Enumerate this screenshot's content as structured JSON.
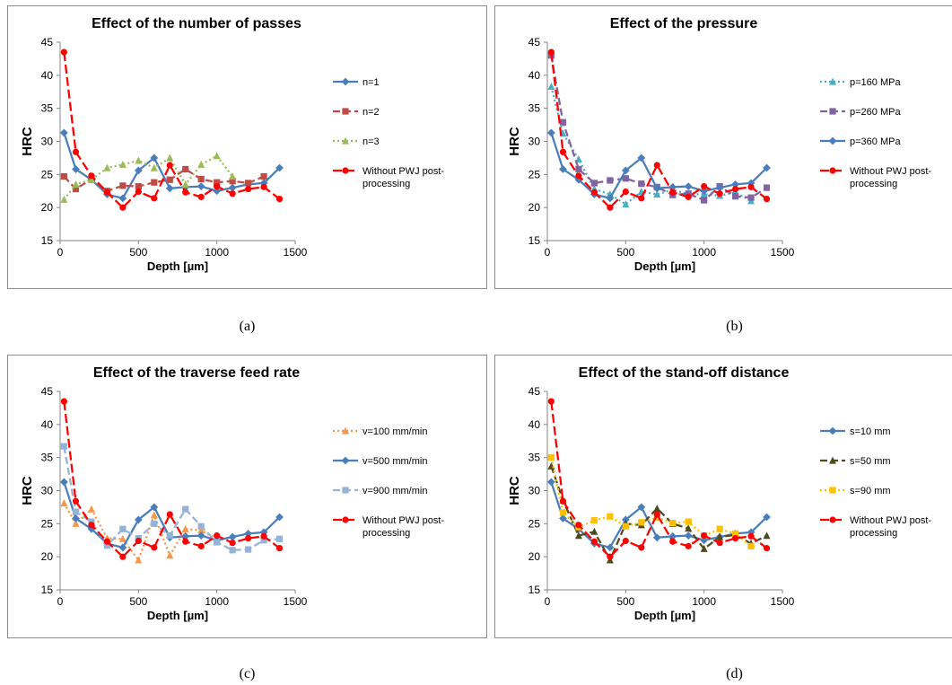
{
  "colors": {
    "blue": "#4a7ebb",
    "red_brick": "#be4b48",
    "green": "#9bbb59",
    "red": "#ff0000",
    "cyan": "#4bacc6",
    "purple": "#8064a2",
    "orange": "#f79646",
    "light_blue": "#95b3d7",
    "olive": "#4f4a1e",
    "yellow": "#ffc000"
  },
  "captions": [
    "(a)",
    "(b)",
    "(c)",
    "(d)"
  ],
  "chart_data": [
    {
      "type": "line",
      "title": "Effect of the number of passes",
      "xlabel": "Depth [µm]",
      "ylabel": "HRC",
      "xlim": [
        0,
        1500
      ],
      "ylim": [
        15,
        45
      ],
      "xticks": [
        0,
        500,
        1000,
        1500
      ],
      "yticks": [
        15,
        20,
        25,
        30,
        35,
        40,
        45
      ],
      "grid": false,
      "legend": "right",
      "series": [
        {
          "name": "n=1",
          "color": "#4a7ebb",
          "marker": "diamond",
          "dash": "solid",
          "x": [
            25,
            100,
            200,
            300,
            400,
            500,
            600,
            700,
            800,
            900,
            1000,
            1100,
            1200,
            1300,
            1400
          ],
          "y": [
            31.3,
            25.8,
            24.2,
            22.0,
            21.4,
            25.6,
            27.5,
            22.9,
            23.1,
            23.2,
            22.5,
            23.0,
            23.5,
            23.7,
            26.0
          ]
        },
        {
          "name": "n=2",
          "color": "#be4b48",
          "marker": "square",
          "dash": "dash",
          "x": [
            25,
            100,
            200,
            300,
            400,
            500,
            600,
            700,
            800,
            900,
            1000,
            1100,
            1200,
            1300
          ],
          "y": [
            24.7,
            22.8,
            24.3,
            22.5,
            23.3,
            23.2,
            23.8,
            24.2,
            25.8,
            24.3,
            23.8,
            24.0,
            23.7,
            24.7
          ]
        },
        {
          "name": "n=3",
          "color": "#9bbb59",
          "marker": "triangle",
          "dash": "dot",
          "x": [
            25,
            100,
            200,
            300,
            400,
            500,
            600,
            700,
            800,
            900,
            1000,
            1100
          ],
          "y": [
            21.2,
            23.5,
            24.2,
            26.0,
            26.5,
            27.1,
            26.0,
            27.5,
            23.5,
            26.5,
            27.8,
            24.7
          ]
        },
        {
          "name": "Without PWJ post-processing",
          "color": "#ff0000",
          "marker": "circle",
          "dash": "dashlong",
          "x": [
            25,
            100,
            200,
            300,
            400,
            500,
            600,
            700,
            800,
            900,
            1000,
            1100,
            1200,
            1300,
            1400
          ],
          "y": [
            43.5,
            28.4,
            24.8,
            22.3,
            20.0,
            22.4,
            21.4,
            26.4,
            22.3,
            21.6,
            23.2,
            22.1,
            22.8,
            23.1,
            21.3
          ]
        }
      ]
    },
    {
      "type": "line",
      "title": "Effect of the pressure",
      "xlabel": "Depth [µm]",
      "ylabel": "HRC",
      "xlim": [
        0,
        1500
      ],
      "ylim": [
        15,
        45
      ],
      "xticks": [
        0,
        500,
        1000,
        1500
      ],
      "yticks": [
        15,
        20,
        25,
        30,
        35,
        40,
        45
      ],
      "grid": false,
      "legend": "right",
      "series": [
        {
          "name": "p=160 MPa",
          "color": "#4bacc6",
          "marker": "triangle",
          "dash": "dot",
          "x": [
            25,
            100,
            200,
            300,
            400,
            500,
            600,
            700,
            800,
            900,
            1000,
            1100,
            1200,
            1300
          ],
          "y": [
            38.3,
            31.2,
            27.3,
            22.8,
            22.0,
            20.5,
            22.4,
            22.0,
            22.7,
            22.0,
            22.0,
            21.8,
            22.3,
            21.0
          ]
        },
        {
          "name": "p=260 MPa",
          "color": "#8064a2",
          "marker": "square",
          "dash": "dash",
          "x": [
            25,
            100,
            200,
            300,
            400,
            500,
            600,
            700,
            800,
            900,
            1000,
            1100,
            1200,
            1300,
            1400
          ],
          "y": [
            43.0,
            32.9,
            25.8,
            23.7,
            24.1,
            24.4,
            23.6,
            23.1,
            21.9,
            22.1,
            21.1,
            23.2,
            21.7,
            21.5,
            23.0
          ]
        },
        {
          "name": "p=360 MPa",
          "color": "#4a7ebb",
          "marker": "diamond",
          "dash": "solid",
          "x": [
            25,
            100,
            200,
            300,
            400,
            500,
            600,
            700,
            800,
            900,
            1000,
            1100,
            1200,
            1300,
            1400
          ],
          "y": [
            31.3,
            25.8,
            24.2,
            22.0,
            21.4,
            25.6,
            27.5,
            22.9,
            23.1,
            23.2,
            22.5,
            23.0,
            23.5,
            23.7,
            26.0
          ]
        },
        {
          "name": "Without PWJ post-processing",
          "color": "#ff0000",
          "marker": "circle",
          "dash": "dashlong",
          "x": [
            25,
            100,
            200,
            300,
            400,
            500,
            600,
            700,
            800,
            900,
            1000,
            1100,
            1200,
            1300,
            1400
          ],
          "y": [
            43.5,
            28.4,
            24.8,
            22.3,
            20.0,
            22.4,
            21.4,
            26.4,
            22.3,
            21.6,
            23.2,
            22.1,
            22.8,
            23.1,
            21.3
          ]
        }
      ]
    },
    {
      "type": "line",
      "title": "Effect of the traverse feed rate",
      "xlabel": "Depth [µm]",
      "ylabel": "HRC",
      "xlim": [
        0,
        1500
      ],
      "ylim": [
        15,
        45
      ],
      "xticks": [
        0,
        500,
        1000,
        1500
      ],
      "yticks": [
        15,
        20,
        25,
        30,
        35,
        40,
        45
      ],
      "grid": false,
      "legend": "right",
      "series": [
        {
          "name": "v=100 mm/min",
          "color": "#f79646",
          "marker": "triangle",
          "dash": "dot",
          "x": [
            25,
            100,
            200,
            300,
            400,
            500,
            600,
            700,
            800,
            900,
            1000
          ],
          "y": [
            28.1,
            25.0,
            27.2,
            22.8,
            22.7,
            19.5,
            26.3,
            20.2,
            24.2,
            24.0,
            22.7
          ]
        },
        {
          "name": "v=500 mm/min",
          "color": "#4a7ebb",
          "marker": "diamond",
          "dash": "solid",
          "x": [
            25,
            100,
            200,
            300,
            400,
            500,
            600,
            700,
            800,
            900,
            1000,
            1100,
            1200,
            1300,
            1400
          ],
          "y": [
            31.3,
            25.8,
            24.2,
            22.0,
            21.4,
            25.6,
            27.5,
            22.9,
            23.1,
            23.2,
            22.5,
            23.0,
            23.5,
            23.7,
            26.0
          ]
        },
        {
          "name": "v=900 mm/min",
          "color": "#95b3d7",
          "marker": "square",
          "dash": "dash",
          "x": [
            25,
            100,
            200,
            300,
            400,
            500,
            600,
            700,
            800,
            900,
            1000,
            1100,
            1200,
            1300,
            1400
          ],
          "y": [
            36.7,
            26.8,
            25.3,
            21.7,
            24.2,
            22.8,
            25.0,
            23.2,
            27.2,
            24.6,
            22.2,
            21.0,
            21.1,
            22.5,
            22.7
          ]
        },
        {
          "name": "Without PWJ post-processing",
          "color": "#ff0000",
          "marker": "circle",
          "dash": "dashlong",
          "x": [
            25,
            100,
            200,
            300,
            400,
            500,
            600,
            700,
            800,
            900,
            1000,
            1100,
            1200,
            1300,
            1400
          ],
          "y": [
            43.5,
            28.4,
            24.8,
            22.3,
            20.0,
            22.4,
            21.4,
            26.4,
            22.3,
            21.6,
            23.2,
            22.1,
            22.8,
            23.1,
            21.3
          ]
        }
      ]
    },
    {
      "type": "line",
      "title": "Effect of the stand-off distance",
      "xlabel": "Depth [µm]",
      "ylabel": "HRC",
      "xlim": [
        0,
        1500
      ],
      "ylim": [
        15,
        45
      ],
      "xticks": [
        0,
        500,
        1000,
        1500
      ],
      "yticks": [
        15,
        20,
        25,
        30,
        35,
        40,
        45
      ],
      "grid": false,
      "legend": "right",
      "series": [
        {
          "name": "s=10 mm",
          "color": "#4a7ebb",
          "marker": "diamond",
          "dash": "solid",
          "x": [
            25,
            100,
            200,
            300,
            400,
            500,
            600,
            700,
            800,
            900,
            1000,
            1100,
            1200,
            1300,
            1400
          ],
          "y": [
            31.3,
            25.8,
            24.2,
            22.0,
            21.4,
            25.6,
            27.5,
            22.9,
            23.1,
            23.2,
            22.5,
            23.0,
            23.5,
            23.7,
            26.0
          ]
        },
        {
          "name": "s=50 mm",
          "color": "#4f4a1e",
          "marker": "triangle",
          "dash": "dash",
          "x": [
            25,
            100,
            200,
            300,
            400,
            500,
            600,
            700,
            800,
            900,
            1000,
            1100,
            1200,
            1300,
            1400
          ],
          "y": [
            33.7,
            28.5,
            23.2,
            23.8,
            19.5,
            25.0,
            24.8,
            27.3,
            25.0,
            24.3,
            21.2,
            23.0,
            23.3,
            22.0,
            23.2
          ]
        },
        {
          "name": "s=90 mm",
          "color": "#ffc000",
          "marker": "square",
          "dash": "dot",
          "x": [
            25,
            100,
            200,
            300,
            400,
            500,
            600,
            700,
            800,
            900,
            1000,
            1100,
            1200,
            1300
          ],
          "y": [
            35.0,
            26.7,
            24.5,
            25.5,
            26.1,
            24.6,
            25.2,
            25.9,
            25.1,
            25.3,
            23.2,
            24.2,
            23.5,
            21.6
          ]
        },
        {
          "name": "Without PWJ post-processing",
          "color": "#ff0000",
          "marker": "circle",
          "dash": "dashlong",
          "x": [
            25,
            100,
            200,
            300,
            400,
            500,
            600,
            700,
            800,
            900,
            1000,
            1100,
            1200,
            1300,
            1400
          ],
          "y": [
            43.5,
            28.4,
            24.8,
            22.3,
            20.0,
            22.4,
            21.4,
            26.4,
            22.3,
            21.6,
            23.2,
            22.1,
            22.8,
            23.1,
            21.3
          ]
        }
      ]
    }
  ]
}
